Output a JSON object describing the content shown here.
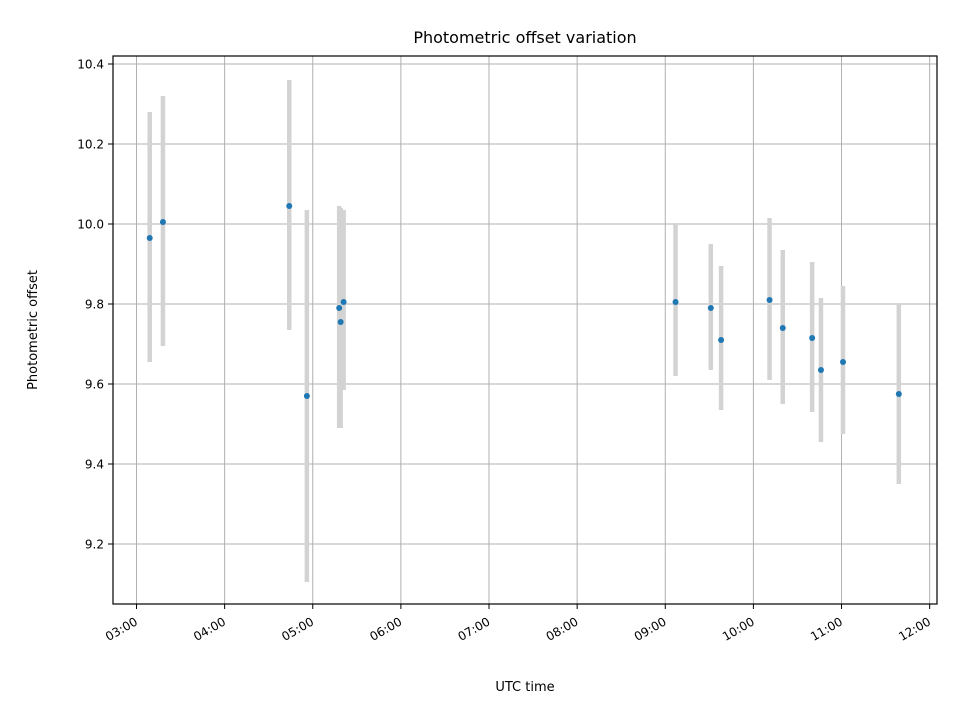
{
  "chart_data": {
    "type": "scatter",
    "title": "Photometric offset variation",
    "xlabel": "UTC time",
    "ylabel": "Photometric offset",
    "xlim": [
      "02:44",
      "12:05"
    ],
    "ylim": [
      9.05,
      10.42
    ],
    "x_ticks": [
      "03:00",
      "04:00",
      "05:00",
      "06:00",
      "07:00",
      "08:00",
      "09:00",
      "10:00",
      "11:00",
      "12:00"
    ],
    "y_ticks": [
      "9.2",
      "9.4",
      "9.6",
      "9.8",
      "10.0",
      "10.2",
      "10.4"
    ],
    "grid": true,
    "point_color": "#1f77b4",
    "errorbar_color": "#d3d3d3",
    "points": [
      {
        "x": "03:09",
        "y": 9.965,
        "lo": 9.655,
        "hi": 10.28
      },
      {
        "x": "03:18",
        "y": 10.005,
        "lo": 9.695,
        "hi": 10.32
      },
      {
        "x": "04:44",
        "y": 10.045,
        "lo": 9.735,
        "hi": 10.36
      },
      {
        "x": "04:56",
        "y": 9.57,
        "lo": 9.105,
        "hi": 10.035
      },
      {
        "x": "05:18",
        "y": 9.79,
        "lo": 9.49,
        "hi": 10.045
      },
      {
        "x": "05:19",
        "y": 9.755,
        "lo": 9.49,
        "hi": 10.04
      },
      {
        "x": "05:21",
        "y": 9.805,
        "lo": 9.585,
        "hi": 10.035
      },
      {
        "x": "09:07",
        "y": 9.805,
        "lo": 9.62,
        "hi": 10.0
      },
      {
        "x": "09:31",
        "y": 9.79,
        "lo": 9.635,
        "hi": 9.95
      },
      {
        "x": "09:38",
        "y": 9.71,
        "lo": 9.535,
        "hi": 9.895
      },
      {
        "x": "10:11",
        "y": 9.81,
        "lo": 9.61,
        "hi": 10.015
      },
      {
        "x": "10:20",
        "y": 9.74,
        "lo": 9.55,
        "hi": 9.935
      },
      {
        "x": "10:40",
        "y": 9.715,
        "lo": 9.53,
        "hi": 9.905
      },
      {
        "x": "10:46",
        "y": 9.635,
        "lo": 9.455,
        "hi": 9.815
      },
      {
        "x": "11:01",
        "y": 9.655,
        "lo": 9.475,
        "hi": 9.845
      },
      {
        "x": "11:39",
        "y": 9.575,
        "lo": 9.35,
        "hi": 9.8
      }
    ]
  }
}
